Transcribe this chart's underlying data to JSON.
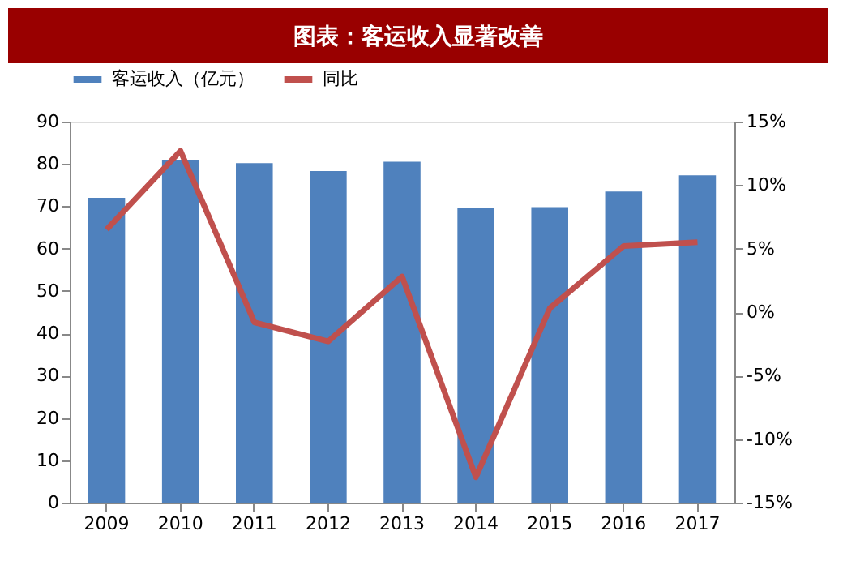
{
  "chart_data": {
    "type": "bar",
    "title": "图表：客运收入显著改善",
    "categories": [
      "2009",
      "2010",
      "2011",
      "2012",
      "2013",
      "2014",
      "2015",
      "2016",
      "2017"
    ],
    "series": [
      {
        "name": "客运收入（亿元）",
        "color": "#4f81bd",
        "values": [
          72,
          81,
          80.2,
          78.3,
          80.5,
          69.5,
          69.8,
          73.5,
          77.3
        ]
      },
      {
        "name": "同比",
        "type": "line",
        "axis": "y2",
        "color": "#c0504d",
        "values": [
          6.5,
          12.7,
          -0.8,
          -2.3,
          2.8,
          -13.0,
          0.3,
          5.2,
          5.5
        ]
      }
    ],
    "ylim": [
      0,
      90
    ],
    "yticks": [
      0,
      10,
      20,
      30,
      40,
      50,
      60,
      70,
      80,
      90
    ],
    "y2lim": [
      -15,
      15
    ],
    "y2ticks": [
      {
        "value": -15,
        "label": "-15%"
      },
      {
        "value": -10,
        "label": "-10%"
      },
      {
        "value": -5,
        "label": "-5%"
      },
      {
        "value": 0,
        "label": "0%"
      },
      {
        "value": 5,
        "label": "5%"
      },
      {
        "value": 10,
        "label": "10%"
      },
      {
        "value": 15,
        "label": "15%"
      }
    ],
    "legend": "top",
    "grid": false,
    "line_style": "solid"
  }
}
